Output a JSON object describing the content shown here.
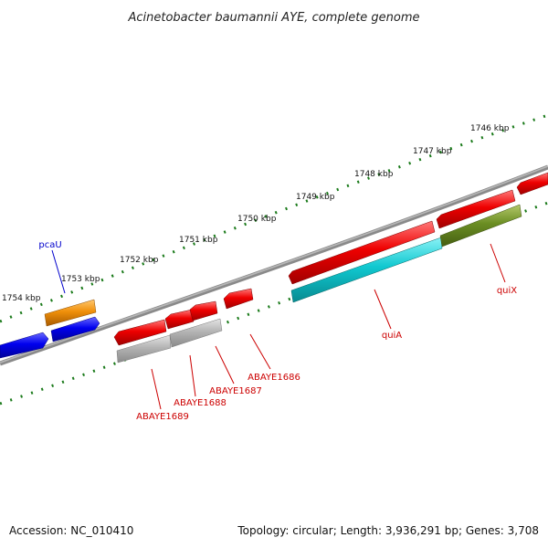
{
  "title": "Acinetobacter baumannii AYE, complete genome",
  "footer": {
    "accession_label": "Accession:",
    "accession": "NC_010410",
    "topology_label": "Topology:",
    "topology": "circular",
    "length_label": "Length:",
    "length": "3,936,291 bp",
    "genes_label": "Genes:",
    "genes": "3,708"
  },
  "ticks": [
    {
      "label": "1754 kbp"
    },
    {
      "label": "1753 kbp"
    },
    {
      "label": "1752 kbp"
    },
    {
      "label": "1751 kbp"
    },
    {
      "label": "1750 kbp"
    },
    {
      "label": "1749 kbp"
    },
    {
      "label": "1748 kbp"
    },
    {
      "label": "1747 kbp"
    },
    {
      "label": "1746 kbp"
    }
  ],
  "genes": [
    {
      "name": "pcaU",
      "color": "#0000cc"
    },
    {
      "name": "ABAYE1689",
      "color": "#cc0000"
    },
    {
      "name": "ABAYE1688",
      "color": "#cc0000"
    },
    {
      "name": "ABAYE1687",
      "color": "#cc0000"
    },
    {
      "name": "ABAYE1686",
      "color": "#cc0000"
    },
    {
      "name": "quiA",
      "color": "#cc0000"
    },
    {
      "name": "quiX",
      "color": "#cc0000"
    }
  ],
  "colors": {
    "backbone": "#808080",
    "tick": "#1a7a1a",
    "forward_blue": "#0000ee",
    "orange": "#f0900a",
    "red": "#ee0000",
    "gray": "#b0b0b0",
    "cyan": "#10c8d0",
    "olive": "#6b8e23"
  }
}
